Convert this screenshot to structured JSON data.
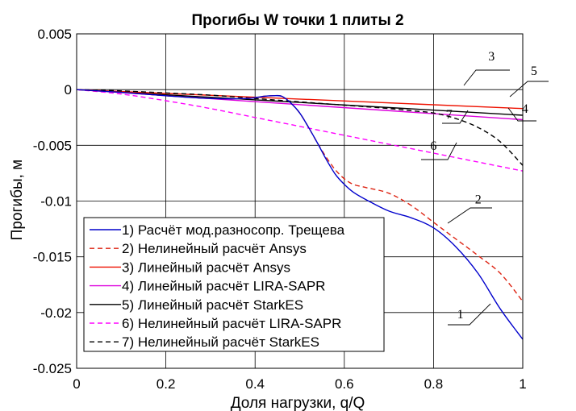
{
  "chart_data": {
    "type": "line",
    "title": "Прогибы W точки 1 плиты 2",
    "xlabel": "Доля нагрузки, q/Q",
    "ylabel": "Прогибы, м",
    "xlim": [
      0,
      1
    ],
    "ylim": [
      -0.025,
      0.005
    ],
    "xticks": [
      0,
      0.2,
      0.4,
      0.6,
      0.8,
      1
    ],
    "xtick_labels": [
      "0",
      "0.2",
      "0.4",
      "0.6",
      "0.8",
      "1"
    ],
    "yticks": [
      0.005,
      0,
      -0.005,
      -0.01,
      -0.015,
      -0.02,
      -0.025
    ],
    "ytick_labels": [
      "0.005",
      "0",
      "-0.005",
      "-0.01",
      "-0.015",
      "-0.02",
      "-0.025"
    ],
    "grid": true,
    "legend_position": "bottom-left",
    "series": [
      {
        "name": "1) Расчёт мод.разносопр. Трещева",
        "color": "#0000cc",
        "dash": "solid",
        "x": [
          0,
          0.1,
          0.2,
          0.3,
          0.38,
          0.42,
          0.44,
          0.46,
          0.48,
          0.5,
          0.52,
          0.54,
          0.56,
          0.58,
          0.6,
          0.62,
          0.65,
          0.7,
          0.75,
          0.8,
          0.85,
          0.9,
          0.95,
          1.0
        ],
        "y": [
          0,
          -0.00025,
          -0.00055,
          -0.0008,
          -0.0008,
          -0.0006,
          -0.00055,
          -0.0006,
          -0.0012,
          -0.0021,
          -0.0034,
          -0.0048,
          -0.0063,
          -0.0076,
          -0.0085,
          -0.0092,
          -0.0099,
          -0.0109,
          -0.0115,
          -0.0124,
          -0.0141,
          -0.0165,
          -0.0197,
          -0.0224
        ]
      },
      {
        "name": "2) Нелинейный расчёт Ansys",
        "color": "#dd2211",
        "dash": "dashed",
        "x": [
          0,
          0.1,
          0.2,
          0.3,
          0.38,
          0.42,
          0.44,
          0.46,
          0.48,
          0.5,
          0.52,
          0.54,
          0.56,
          0.58,
          0.6,
          0.62,
          0.65,
          0.7,
          0.75,
          0.8,
          0.85,
          0.9,
          0.95,
          1.0
        ],
        "y": [
          0,
          -0.00025,
          -0.00055,
          -0.0008,
          -0.0008,
          -0.0006,
          -0.00055,
          -0.0006,
          -0.0012,
          -0.0021,
          -0.0034,
          -0.0048,
          -0.0061,
          -0.0072,
          -0.008,
          -0.0085,
          -0.0088,
          -0.0093,
          -0.0104,
          -0.0119,
          -0.0134,
          -0.0149,
          -0.0165,
          -0.019
        ]
      },
      {
        "name": "3) Линейный расчёт Ansys",
        "color": "#ee1100",
        "dash": "solid",
        "x": [
          0,
          1
        ],
        "y": [
          0,
          -0.0017
        ]
      },
      {
        "name": "4) Линейный расчёт LIRA-SAPR",
        "color": "#dd00dd",
        "dash": "solid",
        "x": [
          0,
          1
        ],
        "y": [
          0,
          -0.0027
        ]
      },
      {
        "name": "5) Линейный расчёт StarkES",
        "color": "#000000",
        "dash": "solid",
        "x": [
          0,
          1
        ],
        "y": [
          0,
          -0.0023
        ]
      },
      {
        "name": "6) Нелинейный расчёт LIRA-SAPR",
        "color": "#ff00ff",
        "dash": "dashed",
        "x": [
          0,
          0.1,
          0.2,
          0.3,
          0.4,
          0.5,
          0.6,
          0.7,
          0.8,
          0.9,
          1.0
        ],
        "y": [
          0,
          -0.0004,
          -0.001,
          -0.0017,
          -0.0025,
          -0.0033,
          -0.0041,
          -0.0049,
          -0.0057,
          -0.0065,
          -0.0073
        ]
      },
      {
        "name": "7) Нелинейный расчёт StarkES",
        "color": "#000000",
        "dash": "dashed",
        "x": [
          0,
          0.1,
          0.2,
          0.3,
          0.4,
          0.5,
          0.6,
          0.7,
          0.75,
          0.8,
          0.85,
          0.9,
          0.95,
          1.0
        ],
        "y": [
          0,
          -0.00012,
          -0.0003,
          -0.0005,
          -0.0008,
          -0.0011,
          -0.0014,
          -0.0017,
          -0.0019,
          -0.0021,
          -0.0026,
          -0.0034,
          -0.0047,
          -0.0068
        ]
      }
    ],
    "annotations": [
      {
        "text": "1",
        "x": 0.86,
        "y": -0.0205
      },
      {
        "text": "2",
        "x": 0.9,
        "y": -0.0102
      },
      {
        "text": "3",
        "x": 0.93,
        "y": 0.0026
      },
      {
        "text": "4",
        "x": 1.005,
        "y": -0.0021
      },
      {
        "text": "5",
        "x": 1.025,
        "y": 0.0013
      },
      {
        "text": "6",
        "x": 0.8,
        "y": -0.0054
      },
      {
        "text": "7",
        "x": 0.835,
        "y": -0.0026
      }
    ]
  }
}
